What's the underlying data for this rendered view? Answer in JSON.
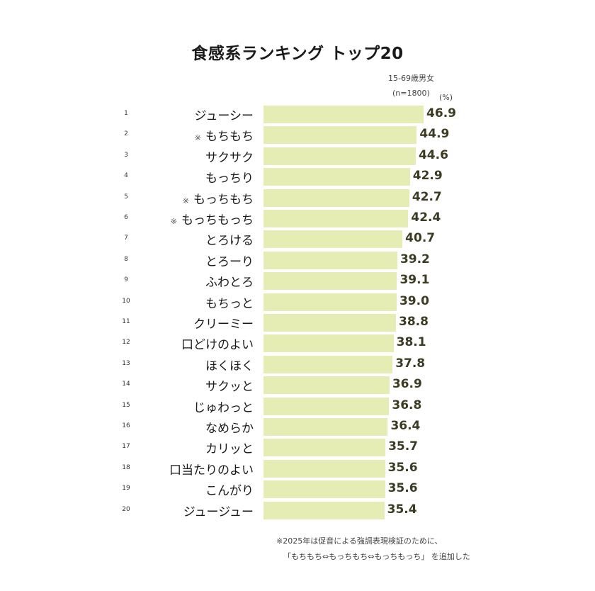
{
  "title": "食感系ランキング トップ20",
  "sample": {
    "group": "15-69歳男女",
    "n": "(n=1800)"
  },
  "unit": "(%)",
  "footnote": {
    "line1": "※2025年は促音による強調表現検証のために、",
    "line2": "「もちもち⇔もっちもち⇔もっちもっち」 を追加した"
  },
  "colors": {
    "bar": "#e6edb4",
    "value_text": "#3b3b22"
  },
  "rows": [
    {
      "rank": "1",
      "mark": "",
      "label": "ジューシー",
      "value": "46.9"
    },
    {
      "rank": "2",
      "mark": "※",
      "label": "もちもち",
      "value": "44.9"
    },
    {
      "rank": "3",
      "mark": "",
      "label": "サクサク",
      "value": "44.6"
    },
    {
      "rank": "4",
      "mark": "",
      "label": "もっちり",
      "value": "42.9"
    },
    {
      "rank": "5",
      "mark": "※",
      "label": "もっちもち",
      "value": "42.7"
    },
    {
      "rank": "6",
      "mark": "※",
      "label": "もっちもっち",
      "value": "42.4"
    },
    {
      "rank": "7",
      "mark": "",
      "label": "とろける",
      "value": "40.7"
    },
    {
      "rank": "8",
      "mark": "",
      "label": "とろーり",
      "value": "39.2"
    },
    {
      "rank": "9",
      "mark": "",
      "label": "ふわとろ",
      "value": "39.1"
    },
    {
      "rank": "10",
      "mark": "",
      "label": "もちっと",
      "value": "39.0"
    },
    {
      "rank": "11",
      "mark": "",
      "label": "クリーミー",
      "value": "38.8"
    },
    {
      "rank": "12",
      "mark": "",
      "label": "口どけのよい",
      "value": "38.1"
    },
    {
      "rank": "13",
      "mark": "",
      "label": "ほくほく",
      "value": "37.8"
    },
    {
      "rank": "14",
      "mark": "",
      "label": "サクッと",
      "value": "36.9"
    },
    {
      "rank": "15",
      "mark": "",
      "label": "じゅわっと",
      "value": "36.8"
    },
    {
      "rank": "16",
      "mark": "",
      "label": "なめらか",
      "value": "36.4"
    },
    {
      "rank": "17",
      "mark": "",
      "label": "カリッと",
      "value": "35.7"
    },
    {
      "rank": "18",
      "mark": "",
      "label": "口当たりのよい",
      "value": "35.6"
    },
    {
      "rank": "19",
      "mark": "",
      "label": "こんがり",
      "value": "35.6"
    },
    {
      "rank": "20",
      "mark": "",
      "label": "ジュージュー",
      "value": "35.4"
    }
  ],
  "chart_data": {
    "type": "bar",
    "orientation": "horizontal",
    "title": "食感系ランキング トップ20",
    "subtitle": "15-69歳男女 (n=1800)",
    "unit": "%",
    "xlabel": "",
    "ylabel": "",
    "grid": false,
    "legend": null,
    "categories": [
      "ジューシー",
      "もちもち",
      "サクサク",
      "もっちり",
      "もっちもち",
      "もっちもっち",
      "とろける",
      "とろーり",
      "ふわとろ",
      "もちっと",
      "クリーミー",
      "口どけのよい",
      "ほくほく",
      "サクッと",
      "じゅわっと",
      "なめらか",
      "カリッと",
      "口当たりのよい",
      "こんがり",
      "ジュージュー"
    ],
    "values": [
      46.9,
      44.9,
      44.6,
      42.9,
      42.7,
      42.4,
      40.7,
      39.2,
      39.1,
      39.0,
      38.8,
      38.1,
      37.8,
      36.9,
      36.8,
      36.4,
      35.7,
      35.6,
      35.6,
      35.4
    ],
    "annotations": [
      "※ marks: もちもち, もっちもち, もっちもっち",
      "※2025年は促音による強調表現検証のために、「もちもち⇔もっちもち⇔もっちもっち」を追加した"
    ]
  }
}
